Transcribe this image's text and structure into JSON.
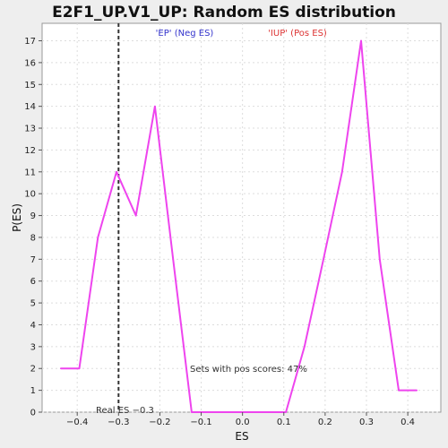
{
  "chart_data": {
    "type": "line",
    "title": "E2F1_UP.V1_UP: Random ES distribution",
    "xlabel": "ES",
    "ylabel": "P(ES)",
    "xlim": [
      -0.485,
      0.48
    ],
    "ylim": [
      0,
      17.8
    ],
    "x_ticks": [
      -0.4,
      -0.3,
      -0.2,
      -0.1,
      0.0,
      0.1,
      0.2,
      0.3,
      0.4
    ],
    "x_tick_labels": [
      "−0.4",
      "−0.3",
      "−0.2",
      "−0.1",
      "0.0",
      "0.1",
      "0.2",
      "0.3",
      "0.4"
    ],
    "y_ticks": [
      0,
      1,
      2,
      3,
      4,
      5,
      6,
      7,
      8,
      9,
      10,
      11,
      12,
      13,
      14,
      15,
      16,
      17
    ],
    "grid": true,
    "series": [
      {
        "color": "#ee44ee",
        "x": [
          -0.44,
          -0.395,
          -0.35,
          -0.305,
          -0.258,
          -0.212,
          -0.168,
          -0.123,
          -0.078,
          -0.033,
          0.013,
          0.058,
          0.105,
          0.15,
          0.196,
          0.241,
          0.287,
          0.332,
          0.378,
          0.422
        ],
        "y": [
          2,
          2,
          8,
          11,
          9,
          14,
          7,
          0,
          0,
          0,
          0,
          0,
          0,
          3,
          7,
          11,
          17,
          7,
          1,
          1
        ]
      }
    ],
    "real_es": -0.3,
    "annotations": {
      "neg_label": "'EP' (Neg ES)",
      "pos_label": "'IUP' (Pos ES)",
      "real_es_label": "Real ES −0.3",
      "pos_scores_text": "Sets with pos scores: 47%"
    },
    "colors": {
      "line": "#ee44ee",
      "neg_label": "#3333cc",
      "pos_label": "#dd3333",
      "plot_bg": "#ffffff",
      "page_bg": "#eeeeee"
    }
  }
}
